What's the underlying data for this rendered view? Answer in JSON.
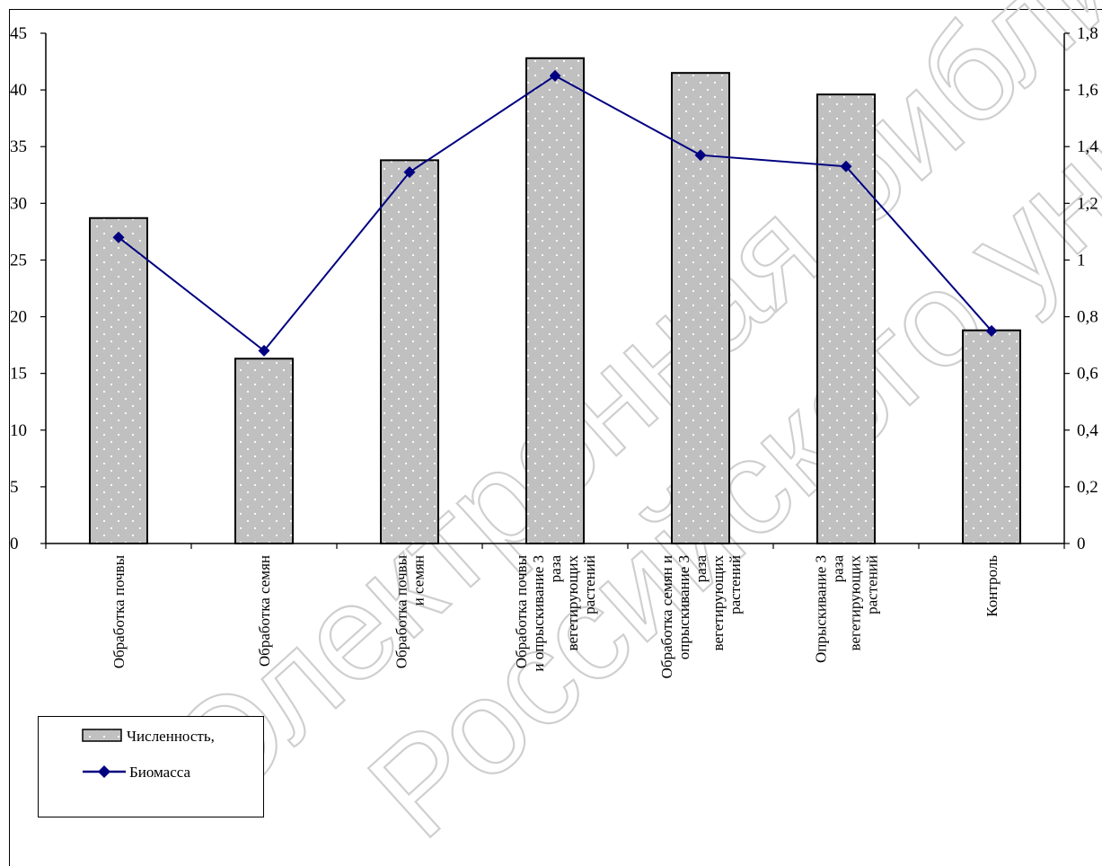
{
  "chart_data": {
    "type": "bar",
    "categories": [
      [
        "Обработка почвы"
      ],
      [
        "Обработка семян"
      ],
      [
        "Обработка почвы",
        "и семян"
      ],
      [
        "Обработка почвы",
        "и опрыскивание 3",
        "раза",
        "вегетирующих",
        "растений"
      ],
      [
        "Обработка семян и",
        "опрыскивание 3",
        "раза",
        "вегетирующих",
        "растений"
      ],
      [
        "Опрыскивание 3",
        "раза",
        "вегетирующих",
        "растений"
      ],
      [
        "Контроль"
      ]
    ],
    "series": [
      {
        "name": "Численность,",
        "type": "bar",
        "axis": "left",
        "values": [
          28.7,
          16.3,
          33.8,
          42.8,
          41.5,
          39.6,
          18.8
        ]
      },
      {
        "name": "Биомасса",
        "type": "line",
        "axis": "right",
        "values": [
          1.08,
          0.68,
          1.31,
          1.65,
          1.37,
          1.33,
          0.75
        ]
      }
    ],
    "left_axis": {
      "min": 0,
      "max": 45,
      "ticks": [
        "0",
        "5",
        "10",
        "15",
        "20",
        "25",
        "30",
        "35",
        "40",
        "45"
      ]
    },
    "right_axis": {
      "min": 0,
      "max": 1.8,
      "ticks": [
        "0",
        "0,2",
        "0,4",
        "0,6",
        "0,8",
        "1",
        "1,2",
        "1,4",
        "1,6",
        "1,8"
      ]
    },
    "grid": false,
    "legend_position": "bottom-left",
    "colors": {
      "bar_fill": "#c0c0c0",
      "bar_dots": "#ffffff",
      "line": "#000080",
      "axis": "#000000"
    }
  },
  "watermark": {
    "line1": "Электронная библиотека",
    "line2": "Российского университета"
  }
}
